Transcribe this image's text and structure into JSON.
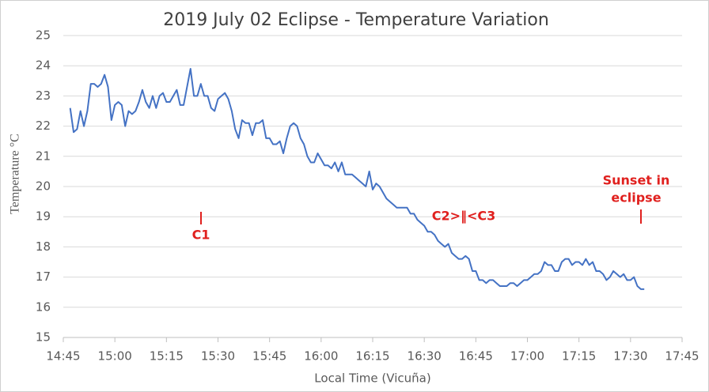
{
  "chart_data": {
    "type": "line",
    "title": "2019 July 02 Eclipse - Temperature Variation",
    "x_label": "Local Time (Vicuña)",
    "y_label": "Temperature °C",
    "xlim": [
      885,
      1065
    ],
    "xticks": [
      {
        "value": 885,
        "label": "14:45"
      },
      {
        "value": 900,
        "label": "15:00"
      },
      {
        "value": 915,
        "label": "15:15"
      },
      {
        "value": 930,
        "label": "15:30"
      },
      {
        "value": 945,
        "label": "15:45"
      },
      {
        "value": 960,
        "label": "16:00"
      },
      {
        "value": 975,
        "label": "16:15"
      },
      {
        "value": 990,
        "label": "16:30"
      },
      {
        "value": 1005,
        "label": "16:45"
      },
      {
        "value": 1020,
        "label": "17:00"
      },
      {
        "value": 1035,
        "label": "17:15"
      },
      {
        "value": 1050,
        "label": "17:30"
      },
      {
        "value": 1065,
        "label": "17:45"
      }
    ],
    "ylim": [
      15,
      25
    ],
    "yticks": [
      15,
      16,
      17,
      18,
      19,
      20,
      21,
      22,
      23,
      24,
      25
    ],
    "grid": true,
    "annotations": [
      "C1",
      "C2>‖<C3",
      "Sunset in",
      "eclipse"
    ],
    "x": [
      887,
      888,
      889,
      890,
      891,
      892,
      893,
      894,
      895,
      896,
      897,
      898,
      899,
      900,
      901,
      902,
      903,
      904,
      905,
      906,
      907,
      908,
      909,
      910,
      911,
      912,
      913,
      914,
      915,
      916,
      917,
      918,
      919,
      920,
      921,
      922,
      923,
      924,
      925,
      926,
      927,
      928,
      929,
      930,
      931,
      932,
      933,
      934,
      935,
      936,
      937,
      938,
      939,
      940,
      941,
      942,
      943,
      944,
      945,
      946,
      947,
      948,
      949,
      950,
      951,
      952,
      953,
      954,
      955,
      956,
      957,
      958,
      959,
      960,
      961,
      962,
      963,
      964,
      965,
      966,
      967,
      968,
      969,
      970,
      971,
      972,
      973,
      974,
      975,
      976,
      977,
      978,
      979,
      980,
      981,
      982,
      983,
      984,
      985,
      986,
      987,
      988,
      989,
      990,
      991,
      992,
      993,
      994,
      995,
      996,
      997,
      998,
      999,
      1000,
      1001,
      1002,
      1003,
      1004,
      1005,
      1006,
      1007,
      1008,
      1009,
      1010,
      1011,
      1012,
      1013,
      1014,
      1015,
      1016,
      1017,
      1018,
      1019,
      1020,
      1021,
      1022,
      1023,
      1024,
      1025,
      1026,
      1027,
      1028,
      1029,
      1030,
      1031,
      1032,
      1033,
      1034,
      1035,
      1036,
      1037,
      1038,
      1039,
      1040,
      1041,
      1042,
      1043,
      1044,
      1045,
      1046,
      1047,
      1048,
      1049,
      1050,
      1051,
      1052,
      1053,
      1054
    ],
    "series": [
      {
        "name": "Temperature",
        "color": "#4472c4",
        "values": [
          22.6,
          21.8,
          21.9,
          22.5,
          22.0,
          22.5,
          23.4,
          23.4,
          23.3,
          23.4,
          23.7,
          23.3,
          22.2,
          22.7,
          22.8,
          22.7,
          22.0,
          22.5,
          22.4,
          22.5,
          22.8,
          23.2,
          22.8,
          22.6,
          23.0,
          22.6,
          23.0,
          23.1,
          22.8,
          22.8,
          23.0,
          23.2,
          22.7,
          22.7,
          23.3,
          23.9,
          23.0,
          23.0,
          23.4,
          23.0,
          23.0,
          22.6,
          22.5,
          22.9,
          23.0,
          23.1,
          22.9,
          22.5,
          21.9,
          21.6,
          22.2,
          22.1,
          22.1,
          21.7,
          22.1,
          22.1,
          22.2,
          21.6,
          21.6,
          21.4,
          21.4,
          21.5,
          21.1,
          21.6,
          22.0,
          22.1,
          22.0,
          21.6,
          21.4,
          21.0,
          20.8,
          20.8,
          21.1,
          20.9,
          20.7,
          20.7,
          20.6,
          20.8,
          20.5,
          20.8,
          20.4,
          20.4,
          20.4,
          20.3,
          20.2,
          20.1,
          20.0,
          20.5,
          19.9,
          20.1,
          20.0,
          19.8,
          19.6,
          19.5,
          19.4,
          19.3,
          19.3,
          19.3,
          19.3,
          19.1,
          19.1,
          18.9,
          18.8,
          18.7,
          18.5,
          18.5,
          18.4,
          18.2,
          18.1,
          18.0,
          18.1,
          17.8,
          17.7,
          17.6,
          17.6,
          17.7,
          17.6,
          17.2,
          17.2,
          16.9,
          16.9,
          16.8,
          16.9,
          16.9,
          16.8,
          16.7,
          16.7,
          16.7,
          16.8,
          16.8,
          16.7,
          16.8,
          16.9,
          16.9,
          17.0,
          17.1,
          17.1,
          17.2,
          17.5,
          17.4,
          17.4,
          17.2,
          17.2,
          17.5,
          17.6,
          17.6,
          17.4,
          17.5,
          17.5,
          17.4,
          17.6,
          17.4,
          17.5,
          17.2,
          17.2,
          17.1,
          16.9,
          17.0,
          17.2,
          17.1,
          17.0,
          17.1,
          16.9,
          16.9,
          17.0,
          16.7,
          16.6,
          16.6
        ]
      }
    ]
  }
}
